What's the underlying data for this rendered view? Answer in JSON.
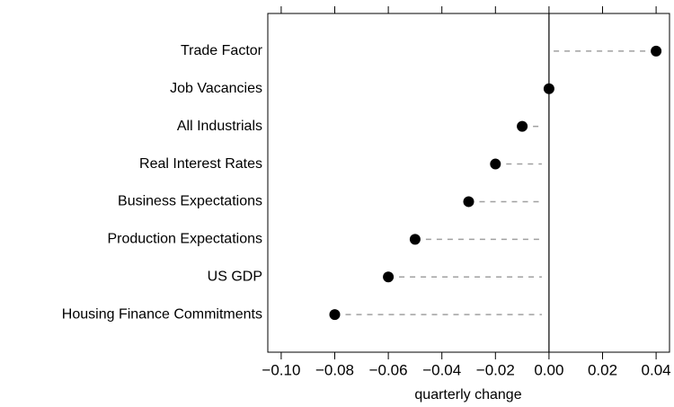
{
  "chart_data": {
    "type": "dot",
    "categories": [
      "Trade Factor",
      "Job Vacancies",
      "All Industrials",
      "Real Interest Rates",
      "Business Expectations",
      "Production Expectations",
      "US GDP",
      "Housing Finance Commitments"
    ],
    "values": [
      0.04,
      0.0,
      -0.01,
      -0.02,
      -0.03,
      -0.05,
      -0.06,
      -0.08
    ],
    "color": "#000000",
    "stem_color": "#a0a0a0",
    "xlabel": "quarterly change",
    "xlim": [
      -0.105,
      0.045
    ],
    "xticks": [
      {
        "value": -0.1,
        "label": "−0.10"
      },
      {
        "value": -0.08,
        "label": "−0.08"
      },
      {
        "value": -0.06,
        "label": "−0.06"
      },
      {
        "value": -0.04,
        "label": "−0.04"
      },
      {
        "value": -0.02,
        "label": "−0.02"
      },
      {
        "value": 0,
        "label": "0.00"
      },
      {
        "value": 0.02,
        "label": "0.02"
      },
      {
        "value": 0.04,
        "label": "0.04"
      }
    ]
  }
}
